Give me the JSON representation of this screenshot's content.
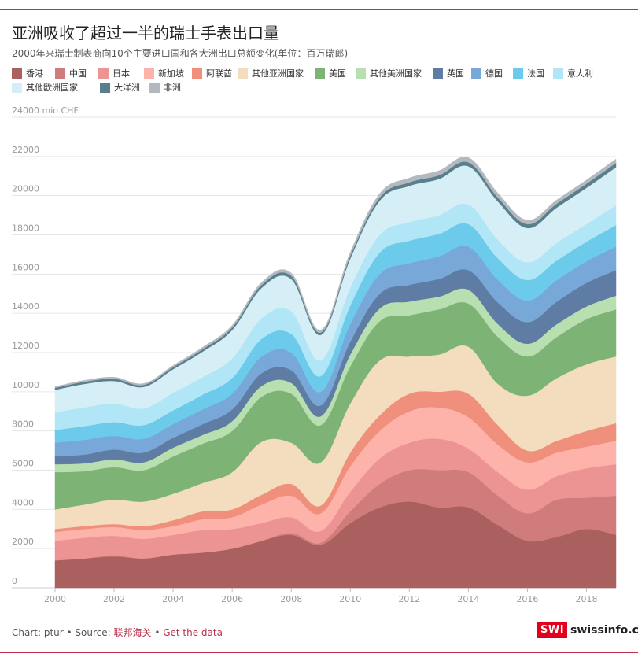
{
  "header": {
    "title": "亚洲吸收了超过一半的瑞士手表出口量",
    "subtitle": "2000年来瑞士制表商向10个主要进口国和各大洲出口总额变化(单位：百万瑞郎)"
  },
  "footer": {
    "credit": "Chart: ptur • Source: ",
    "source_link": "联邦海关",
    "separator": " • ",
    "data_link": "Get the data"
  },
  "brand": {
    "badge": "SWI",
    "name": "swissinfo.ch"
  },
  "colors": {
    "accent": "#b8324b",
    "grid": "#e6e6e6",
    "axis_text": "#999999"
  },
  "chart_data": {
    "type": "area",
    "stacked": true,
    "ylabel": "24000 mio CHF",
    "ylim": [
      0,
      24000
    ],
    "yticks": [
      0,
      2000,
      4000,
      6000,
      8000,
      10000,
      12000,
      14000,
      16000,
      18000,
      20000,
      22000
    ],
    "xticks": [
      2000,
      2002,
      2004,
      2006,
      2008,
      2010,
      2012,
      2014,
      2016,
      2018
    ],
    "grid": true,
    "legend_position": "top",
    "x": [
      2000,
      2001,
      2002,
      2003,
      2004,
      2005,
      2006,
      2007,
      2008,
      2009,
      2010,
      2011,
      2012,
      2013,
      2014,
      2015,
      2016,
      2017,
      2018,
      2019
    ],
    "series": [
      {
        "name": "香港",
        "color": "#ab6060",
        "values": [
          1400,
          1500,
          1600,
          1500,
          1700,
          1800,
          2000,
          2400,
          2700,
          2200,
          3300,
          4100,
          4400,
          4100,
          4100,
          3200,
          2400,
          2600,
          3000,
          2700
        ]
      },
      {
        "name": "中国",
        "color": "#d17c7c",
        "values": [
          0,
          0,
          50,
          0,
          0,
          0,
          0,
          0,
          100,
          100,
          600,
          1200,
          1600,
          1900,
          1800,
          1500,
          1400,
          1900,
          1600,
          2000
        ]
      },
      {
        "name": "日本",
        "color": "#ec9494",
        "values": [
          1000,
          1050,
          1000,
          1000,
          1000,
          1150,
          1000,
          900,
          800,
          600,
          1000,
          1300,
          1400,
          1600,
          1200,
          1200,
          1200,
          1200,
          1500,
          1600
        ]
      },
      {
        "name": "新加坡",
        "color": "#fdb2aa",
        "values": [
          450,
          450,
          450,
          450,
          450,
          550,
          600,
          950,
          1100,
          900,
          1300,
          1400,
          1600,
          1600,
          1600,
          1400,
          1400,
          1200,
          1100,
          1200
        ]
      },
      {
        "name": "阿联酋",
        "color": "#f0907c",
        "values": [
          150,
          150,
          150,
          200,
          300,
          400,
          400,
          500,
          600,
          400,
          700,
          800,
          900,
          800,
          1200,
          1000,
          600,
          600,
          800,
          900
        ]
      },
      {
        "name": "其他亚洲国家",
        "color": "#f4ddbf",
        "values": [
          1000,
          1100,
          1250,
          1250,
          1350,
          1450,
          1900,
          2700,
          2100,
          2200,
          2500,
          2800,
          1900,
          1900,
          2400,
          2100,
          2800,
          3200,
          3400,
          3400
        ]
      },
      {
        "name": "美国",
        "color": "#7db375",
        "values": [
          1900,
          1700,
          1650,
          1600,
          1900,
          2000,
          2100,
          2300,
          2500,
          1900,
          1900,
          2000,
          2100,
          2300,
          2200,
          2400,
          2000,
          2100,
          2300,
          2400
        ]
      },
      {
        "name": "其他美洲国家",
        "color": "#b8dfb0",
        "values": [
          400,
          400,
          400,
          400,
          450,
          450,
          500,
          550,
          550,
          450,
          600,
          650,
          700,
          650,
          700,
          650,
          650,
          650,
          650,
          700
        ]
      },
      {
        "name": "英国",
        "color": "#5f7ca4",
        "values": [
          400,
          450,
          500,
          500,
          500,
          550,
          600,
          650,
          650,
          550,
          650,
          750,
          850,
          900,
          1000,
          1100,
          1100,
          1150,
          1200,
          1300
        ]
      },
      {
        "name": "德国",
        "color": "#78a8d8",
        "values": [
          700,
          750,
          700,
          700,
          700,
          750,
          800,
          850,
          900,
          700,
          900,
          1000,
          1100,
          1150,
          1200,
          1150,
          1100,
          1100,
          1100,
          1200
        ]
      },
      {
        "name": "法国",
        "color": "#6ccaea",
        "values": [
          650,
          700,
          700,
          700,
          700,
          750,
          800,
          900,
          950,
          800,
          950,
          1100,
          1150,
          1150,
          1150,
          1100,
          1050,
          1000,
          1000,
          1100
        ]
      },
      {
        "name": "意大利",
        "color": "#b0e6f6",
        "values": [
          900,
          950,
          950,
          850,
          900,
          900,
          1000,
          1050,
          1150,
          800,
          900,
          900,
          950,
          950,
          1000,
          950,
          900,
          900,
          900,
          1000
        ]
      },
      {
        "name": "其他欧洲国家",
        "color": "#d6eef6",
        "values": [
          1150,
          1200,
          1150,
          1100,
          1200,
          1300,
          1450,
          1550,
          1650,
          1300,
          1500,
          1750,
          1850,
          1850,
          1950,
          1950,
          1750,
          1800,
          1850,
          1950
        ]
      },
      {
        "name": "大洋洲",
        "color": "#5a7f8c",
        "values": [
          100,
          110,
          110,
          100,
          110,
          120,
          130,
          150,
          160,
          120,
          140,
          160,
          180,
          190,
          200,
          200,
          200,
          200,
          210,
          220
        ]
      },
      {
        "name": "非洲",
        "color": "#b3b9be",
        "values": [
          60,
          70,
          80,
          70,
          80,
          100,
          110,
          130,
          140,
          130,
          170,
          200,
          220,
          230,
          240,
          230,
          200,
          190,
          190,
          200
        ]
      }
    ]
  }
}
